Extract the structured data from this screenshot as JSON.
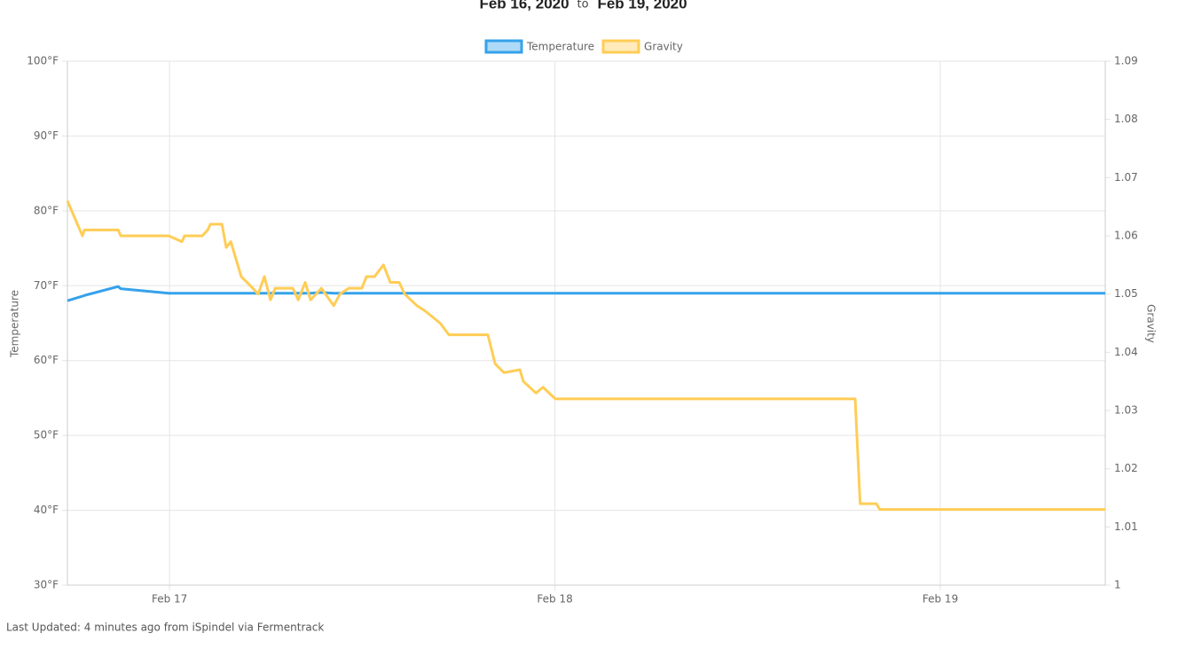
{
  "header": {
    "start": "Feb 16, 2020",
    "separator": "to",
    "end": "Feb 19, 2020"
  },
  "footer": "Last Updated: 4 minutes ago from iSpindel via Fermentrack",
  "chart_data": {
    "type": "line",
    "y_label": "Temperature",
    "y2_label": "Gravity",
    "x": [
      16.735,
      16.774,
      16.779,
      16.867,
      16.873,
      16.998,
      17.032,
      17.039,
      17.085,
      17.099,
      17.106,
      17.136,
      17.147,
      17.159,
      17.186,
      17.216,
      17.23,
      17.246,
      17.262,
      17.274,
      17.32,
      17.334,
      17.352,
      17.366,
      17.394,
      17.426,
      17.442,
      17.465,
      17.499,
      17.511,
      17.532,
      17.555,
      17.573,
      17.596,
      17.61,
      17.642,
      17.665,
      17.702,
      17.725,
      17.826,
      17.845,
      17.868,
      17.909,
      17.918,
      17.951,
      17.969,
      18.001,
      18.779,
      18.792,
      18.834,
      18.843,
      19.428
    ],
    "series": [
      {
        "name": "Temperature",
        "color": "#36a2eb",
        "axis": "y",
        "values": [
          68,
          68.6,
          68.7,
          69.9,
          69.6,
          69,
          69,
          69,
          69,
          69,
          69,
          69,
          69,
          69,
          69,
          69,
          69,
          69,
          69,
          69,
          69,
          69,
          69,
          69,
          69.1,
          69,
          69,
          69,
          69,
          69,
          69,
          69,
          69,
          69,
          69,
          69,
          69,
          69,
          69,
          69,
          69,
          69,
          69,
          69,
          69,
          69,
          69,
          69,
          69,
          69,
          69,
          69
        ]
      },
      {
        "name": "Gravity",
        "color": "#ffcd56",
        "axis": "y2",
        "values": [
          1.066,
          1.06,
          1.061,
          1.061,
          1.06,
          1.06,
          1.059,
          1.06,
          1.06,
          1.061,
          1.062,
          1.062,
          1.058,
          1.059,
          1.053,
          1.051,
          1.05,
          1.053,
          1.049,
          1.051,
          1.051,
          1.049,
          1.052,
          1.049,
          1.051,
          1.048,
          1.05,
          1.051,
          1.051,
          1.053,
          1.053,
          1.055,
          1.052,
          1.052,
          1.05,
          1.048,
          1.047,
          1.045,
          1.043,
          1.043,
          1.038,
          1.0365,
          1.037,
          1.035,
          1.033,
          1.034,
          1.032,
          1.032,
          1.014,
          1.014,
          1.013,
          1.013
        ]
      }
    ],
    "xlim": [
      16.735,
      19.428
    ],
    "xticks": [
      {
        "value": 17,
        "label": "Feb 17"
      },
      {
        "value": 18,
        "label": "Feb 18"
      },
      {
        "value": 19,
        "label": "Feb 19"
      }
    ],
    "ylim": [
      30,
      100
    ],
    "yticks": [
      {
        "value": 30,
        "label": "30°F"
      },
      {
        "value": 40,
        "label": "40°F"
      },
      {
        "value": 50,
        "label": "50°F"
      },
      {
        "value": 60,
        "label": "60°F"
      },
      {
        "value": 70,
        "label": "70°F"
      },
      {
        "value": 80,
        "label": "80°F"
      },
      {
        "value": 90,
        "label": "90°F"
      },
      {
        "value": 100,
        "label": "100°F"
      }
    ],
    "y2lim": [
      1,
      1.09
    ],
    "y2ticks": [
      1,
      1.01,
      1.02,
      1.03,
      1.04,
      1.05,
      1.06,
      1.07,
      1.08,
      1.09
    ],
    "grid": true,
    "legend": "top"
  }
}
